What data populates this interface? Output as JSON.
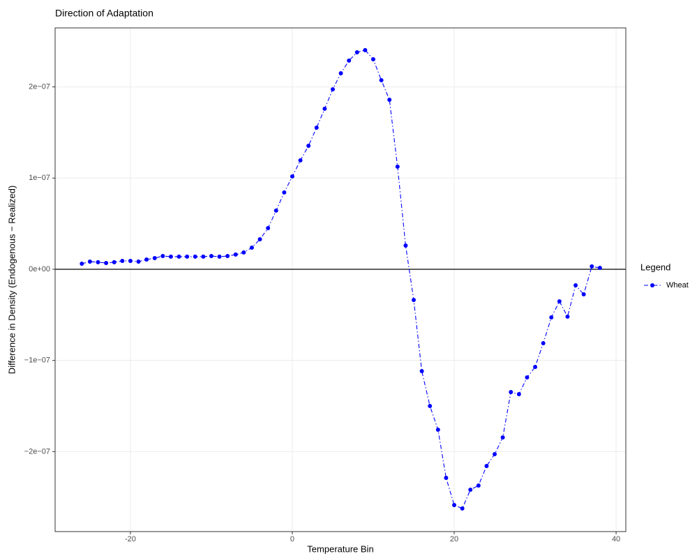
{
  "chart_data": {
    "type": "line",
    "title": "Direction of Adaptation",
    "x_label": "Temperature Bin",
    "y_label": "Difference in Density (Endogenous − Realized)",
    "legend_title": "Legend",
    "legend_position": "right",
    "grid": true,
    "hline": 0,
    "x": [
      -26,
      -25,
      -24,
      -23,
      -22,
      -21,
      -20,
      -19,
      -18,
      -17,
      -16,
      -15,
      -14,
      -13,
      -12,
      -11,
      -10,
      -9,
      -8,
      -7,
      -6,
      -5,
      -4,
      -3,
      -2,
      -1,
      0,
      1,
      2,
      3,
      4,
      5,
      6,
      7,
      8,
      9,
      10,
      11,
      12,
      13,
      14,
      15,
      16,
      17,
      18,
      19,
      20,
      21,
      22,
      23,
      24,
      25,
      26,
      27,
      28,
      29,
      30,
      31,
      32,
      33,
      34,
      35,
      36,
      37,
      38
    ],
    "series": [
      {
        "name": "Wheat",
        "color": "#0000ff",
        "line_style": "dashdot",
        "values": [
          6.1e-09,
          8.4e-09,
          7.7e-09,
          6.9e-09,
          7.7e-09,
          9.2e-09,
          9.2e-09,
          8.4e-09,
          1.07e-08,
          1.22e-08,
          1.45e-08,
          1.38e-08,
          1.38e-08,
          1.38e-08,
          1.38e-08,
          1.38e-08,
          1.45e-08,
          1.38e-08,
          1.45e-08,
          1.61e-08,
          1.84e-08,
          2.37e-08,
          3.29e-08,
          4.51e-08,
          6.43e-08,
          8.42e-08,
          1.018e-07,
          1.194e-07,
          1.354e-07,
          1.553e-07,
          1.76e-07,
          1.974e-07,
          2.15e-07,
          2.288e-07,
          2.379e-07,
          2.403e-07,
          2.303e-07,
          2.073e-07,
          1.859e-07,
          1.125e-07,
          2.6e-08,
          -3.37e-08,
          -1.117e-07,
          -1.5e-07,
          -1.76e-07,
          -2.288e-07,
          -2.586e-07,
          -2.624e-07,
          -2.418e-07,
          -2.372e-07,
          -2.158e-07,
          -2.028e-07,
          -1.844e-07,
          -1.347e-07,
          -1.37e-07,
          -1.186e-07,
          -1.071e-07,
          -8.11e-08,
          -5.28e-08,
          -3.52e-08,
          -5.2e-08,
          -1.76e-08,
          -2.75e-08,
          3.1e-09,
          1.5e-09
        ]
      }
    ],
    "xlim": [
      -29.3,
      41.2
    ],
    "xticks": [
      -20,
      0,
      20,
      40
    ],
    "ylim": [
      -2.877e-07,
      2.647e-07
    ],
    "yticks": [
      {
        "value": -2e-07,
        "label": "−2e−07"
      },
      {
        "value": -1e-07,
        "label": "−1e−07"
      },
      {
        "value": 0,
        "label": "0e+00"
      },
      {
        "value": 1e-07,
        "label": "1e−07"
      },
      {
        "value": 2e-07,
        "label": "2e−07"
      }
    ]
  }
}
